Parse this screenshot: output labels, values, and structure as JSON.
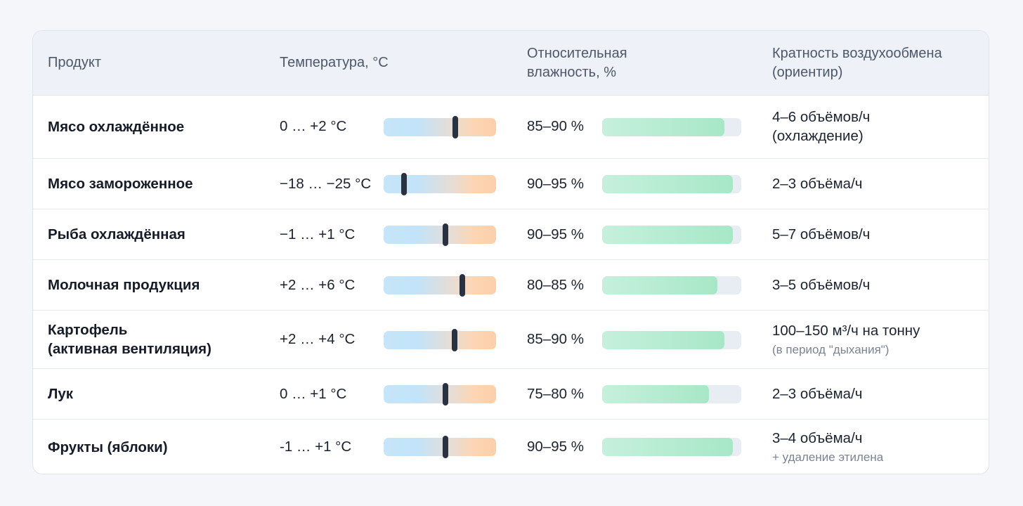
{
  "table": {
    "headers": {
      "product": "Продукт",
      "temperature": "Температура, °С",
      "humidity": "Относительная\nвлажность, %",
      "air_exchange": "Кратность воздухообмена\n(ориентир)"
    },
    "rows": [
      {
        "product": "Мясо охлаждённое",
        "temp_text": "0 … +2 °С",
        "temp_marker": 0.64,
        "humidity_text": "85–90 %",
        "humidity_level": 0.88,
        "air_main": "4–6 объёмов/ч\n(охлаждение)",
        "air_note": ""
      },
      {
        "product": "Мясо замороженное",
        "temp_text": "−18 … −25 °С",
        "temp_marker": 0.18,
        "humidity_text": "90–95 %",
        "humidity_level": 0.94,
        "air_main": "2–3 объёма/ч",
        "air_note": ""
      },
      {
        "product": "Рыба охлаждённая",
        "temp_text": "−1 … +1 °С",
        "temp_marker": 0.55,
        "humidity_text": "90–95 %",
        "humidity_level": 0.94,
        "air_main": "5–7 объёмов/ч",
        "air_note": ""
      },
      {
        "product": "Молочная продукция",
        "temp_text": "+2 … +6 °С",
        "temp_marker": 0.7,
        "humidity_text": "80–85 %",
        "humidity_level": 0.83,
        "air_main": "3–5 объёмов/ч",
        "air_note": ""
      },
      {
        "product": "Картофель\n(активная вентиляция)",
        "temp_text": "+2 … +4 °С",
        "temp_marker": 0.63,
        "humidity_text": "85–90 %",
        "humidity_level": 0.88,
        "air_main": "100–150 м³/ч на тонну",
        "air_note": "(в период \"дыхания\")"
      },
      {
        "product": "Лук",
        "temp_text": "0 … +1 °С",
        "temp_marker": 0.55,
        "humidity_text": "75–80 %",
        "humidity_level": 0.77,
        "air_main": "2–3 объёма/ч",
        "air_note": ""
      },
      {
        "product": "Фрукты (яблоки)",
        "temp_text": "-1 … +1 °С",
        "temp_marker": 0.55,
        "humidity_text": "90–95 %",
        "humidity_level": 0.94,
        "air_main": "3–4 объёма/ч",
        "air_note": "+ удаление этилена"
      }
    ]
  },
  "colors": {
    "header_bg": "#eef2f8",
    "temp_cold": "#c2e3f9",
    "temp_warm": "#fccfa9",
    "humidity_fill": "#b4ebd0",
    "humidity_track": "#e8ecf3",
    "marker": "#2a3140"
  }
}
